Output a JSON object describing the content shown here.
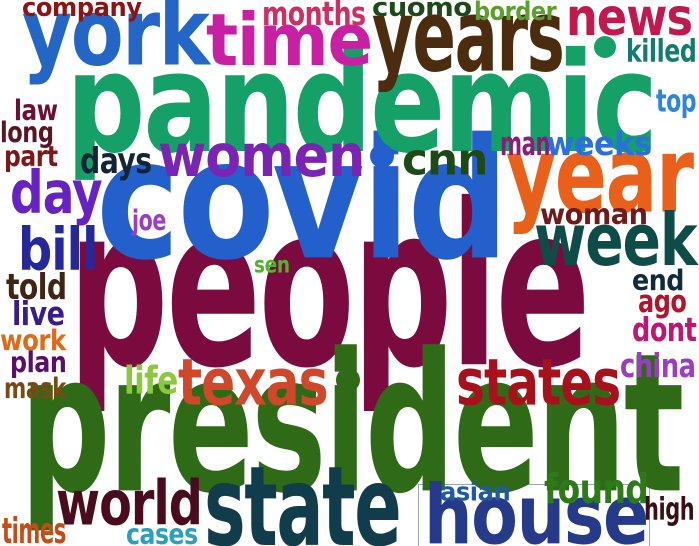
{
  "words": [
    {
      "text": "people",
      "color": "#7b0b3e"
    },
    {
      "text": "president",
      "color": "#2f6b16"
    },
    {
      "text": "covid",
      "color": "#2460cc"
    },
    {
      "text": "pandemic",
      "color": "#14a067"
    },
    {
      "text": "years",
      "color": "#4b2c0f"
    },
    {
      "text": "york",
      "color": "#2466c6"
    },
    {
      "text": "time",
      "color": "#c91fa2"
    },
    {
      "text": "state",
      "color": "#103c4c"
    },
    {
      "text": "house",
      "color": "#263a8a"
    },
    {
      "text": "year",
      "color": "#e8601a"
    },
    {
      "text": "week",
      "color": "#0e4c48"
    },
    {
      "text": "women",
      "color": "#7a24b4"
    },
    {
      "text": "texas",
      "color": "#d0472a"
    },
    {
      "text": "states",
      "color": "#a8111c"
    },
    {
      "text": "world",
      "color": "#4a0b1e"
    },
    {
      "text": "news",
      "color": "#c2184e"
    },
    {
      "text": "day",
      "color": "#6622c2"
    },
    {
      "text": "bill",
      "color": "#26289a"
    },
    {
      "text": "found",
      "color": "#2d7b18"
    },
    {
      "text": "cnn",
      "color": "#1d4a14"
    },
    {
      "text": "months",
      "color": "#d02d62"
    },
    {
      "text": "cuomo",
      "color": "#1e4a1a"
    },
    {
      "text": "border",
      "color": "#5aa02a"
    },
    {
      "text": "company",
      "color": "#8c1414"
    },
    {
      "text": "killed",
      "color": "#137c70"
    },
    {
      "text": "top",
      "color": "#2c86e0"
    },
    {
      "text": "law",
      "color": "#6c1030"
    },
    {
      "text": "long",
      "color": "#5c1424"
    },
    {
      "text": "part",
      "color": "#7e1818"
    },
    {
      "text": "days",
      "color": "#142438"
    },
    {
      "text": "man",
      "color": "#8c1c7c"
    },
    {
      "text": "weeks",
      "color": "#2b6ee0"
    },
    {
      "text": "joe",
      "color": "#9c3cc4"
    },
    {
      "text": "woman",
      "color": "#6e1a1a"
    },
    {
      "text": "sen",
      "color": "#52b42c"
    },
    {
      "text": "told",
      "color": "#402414"
    },
    {
      "text": "live",
      "color": "#3a1c8c"
    },
    {
      "text": "work",
      "color": "#e06a18"
    },
    {
      "text": "plan",
      "color": "#5c0c6c"
    },
    {
      "text": "mask",
      "color": "#7a4a14"
    },
    {
      "text": "life",
      "color": "#8cc83c"
    },
    {
      "text": "end",
      "color": "#0e2a3e"
    },
    {
      "text": "ago",
      "color": "#b2142c"
    },
    {
      "text": "dont",
      "color": "#c21470"
    },
    {
      "text": "china",
      "color": "#9c3cc4"
    },
    {
      "text": "asian",
      "color": "#1e5aa8"
    },
    {
      "text": "high",
      "color": "#3a1018"
    },
    {
      "text": "times",
      "color": "#c84a14"
    },
    {
      "text": "cases",
      "color": "#2aa0c0"
    }
  ]
}
